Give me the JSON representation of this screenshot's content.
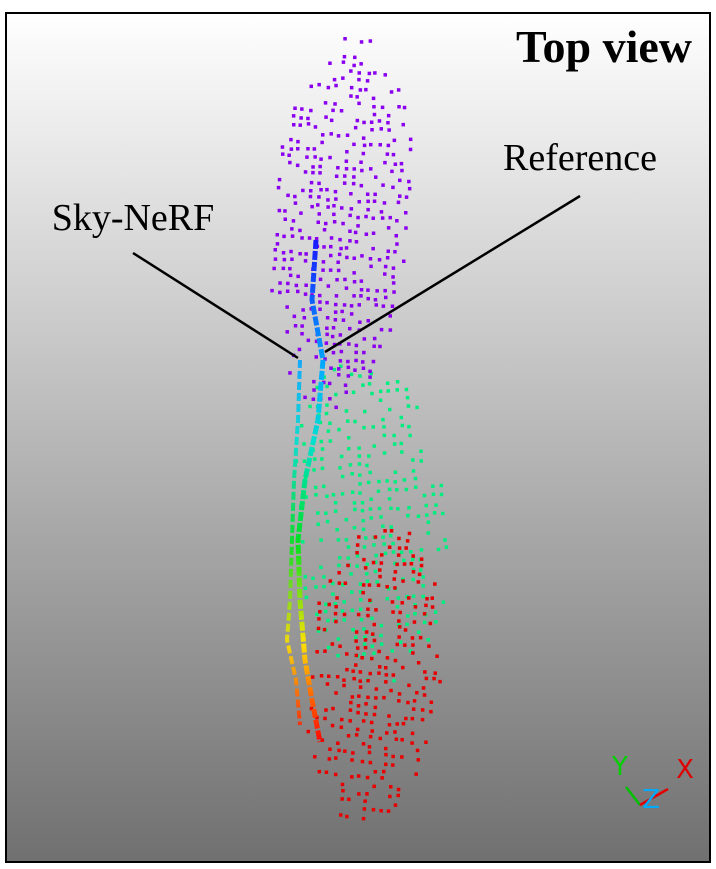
{
  "title": "Top view",
  "labels": {
    "sky_nerf": "Sky-NeRF",
    "reference": "Reference"
  },
  "axes": {
    "y": "Y",
    "z": "Z",
    "x": "X"
  }
}
